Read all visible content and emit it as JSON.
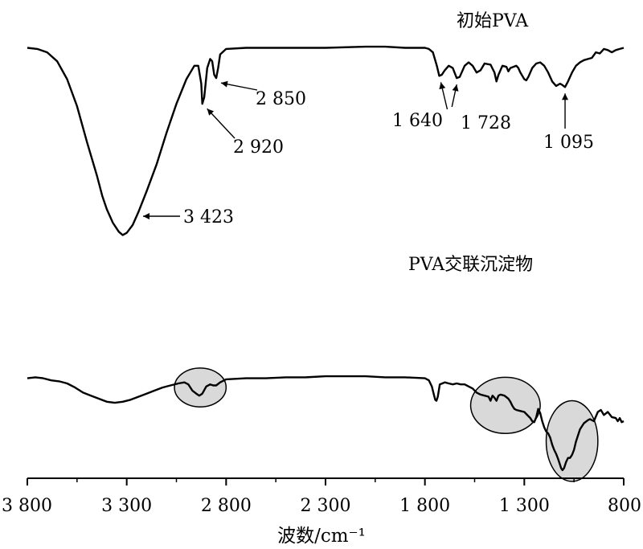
{
  "chart_data": {
    "type": "line",
    "xlabel": "波数/cm⁻¹",
    "x_reversed": true,
    "xlim": [
      3800,
      800
    ],
    "x_ticks": [
      {
        "value": 3800,
        "label": "3 800"
      },
      {
        "value": 3300,
        "label": "3 300"
      },
      {
        "value": 2800,
        "label": "2 800"
      },
      {
        "value": 2300,
        "label": "2 300"
      },
      {
        "value": 1800,
        "label": "1 800"
      },
      {
        "value": 1300,
        "label": "1 300"
      },
      {
        "value": 800,
        "label": "800"
      }
    ],
    "y_axis_shown": false,
    "ylim": [
      0,
      100
    ],
    "series": [
      {
        "name": "初始PVA",
        "color": "#000000",
        "points": [
          [
            3800,
            88
          ],
          [
            3750,
            87.5
          ],
          [
            3700,
            86
          ],
          [
            3650,
            82
          ],
          [
            3600,
            74
          ],
          [
            3550,
            62
          ],
          [
            3500,
            46
          ],
          [
            3450,
            31
          ],
          [
            3423,
            22
          ],
          [
            3400,
            16
          ],
          [
            3370,
            10
          ],
          [
            3340,
            6
          ],
          [
            3320,
            4.5
          ],
          [
            3300,
            5.5
          ],
          [
            3270,
            9
          ],
          [
            3240,
            15
          ],
          [
            3200,
            24
          ],
          [
            3150,
            36
          ],
          [
            3100,
            50
          ],
          [
            3050,
            63
          ],
          [
            3000,
            74
          ],
          [
            2960,
            80
          ],
          [
            2940,
            80
          ],
          [
            2925,
            72
          ],
          [
            2920,
            63
          ],
          [
            2910,
            66
          ],
          [
            2895,
            79
          ],
          [
            2880,
            83
          ],
          [
            2870,
            82
          ],
          [
            2860,
            76
          ],
          [
            2850,
            74.5
          ],
          [
            2840,
            79
          ],
          [
            2830,
            85
          ],
          [
            2800,
            87.5
          ],
          [
            2700,
            88
          ],
          [
            2500,
            88
          ],
          [
            2300,
            88
          ],
          [
            2100,
            88.5
          ],
          [
            2000,
            88.5
          ],
          [
            1900,
            88
          ],
          [
            1800,
            88
          ],
          [
            1780,
            87.5
          ],
          [
            1760,
            86
          ],
          [
            1740,
            80
          ],
          [
            1728,
            75.5
          ],
          [
            1715,
            76
          ],
          [
            1700,
            78
          ],
          [
            1680,
            80
          ],
          [
            1660,
            79
          ],
          [
            1640,
            74.5
          ],
          [
            1625,
            75
          ],
          [
            1600,
            80
          ],
          [
            1580,
            81.5
          ],
          [
            1560,
            80
          ],
          [
            1540,
            77
          ],
          [
            1520,
            78
          ],
          [
            1500,
            81
          ],
          [
            1470,
            80.5
          ],
          [
            1450,
            77
          ],
          [
            1440,
            73
          ],
          [
            1430,
            76
          ],
          [
            1410,
            80
          ],
          [
            1390,
            79.5
          ],
          [
            1380,
            77.5
          ],
          [
            1370,
            79
          ],
          [
            1340,
            80
          ],
          [
            1330,
            79
          ],
          [
            1320,
            77
          ],
          [
            1300,
            74
          ],
          [
            1290,
            73.5
          ],
          [
            1280,
            75
          ],
          [
            1260,
            79
          ],
          [
            1240,
            81
          ],
          [
            1220,
            81.5
          ],
          [
            1200,
            80
          ],
          [
            1180,
            77
          ],
          [
            1160,
            73
          ],
          [
            1140,
            71
          ],
          [
            1120,
            72
          ],
          [
            1110,
            71.5
          ],
          [
            1095,
            70.5
          ],
          [
            1080,
            73
          ],
          [
            1060,
            77
          ],
          [
            1040,
            80
          ],
          [
            1020,
            81.5
          ],
          [
            1000,
            82.5
          ],
          [
            980,
            83
          ],
          [
            960,
            83.5
          ],
          [
            940,
            86
          ],
          [
            920,
            85.5
          ],
          [
            900,
            87.5
          ],
          [
            880,
            87
          ],
          [
            860,
            86
          ],
          [
            840,
            87
          ],
          [
            820,
            87.5
          ],
          [
            800,
            88
          ]
        ]
      },
      {
        "name": "PVA交联沉淀物",
        "color": "#000000",
        "points": [
          [
            3800,
            47
          ],
          [
            3760,
            47.5
          ],
          [
            3720,
            47
          ],
          [
            3680,
            46
          ],
          [
            3640,
            45.5
          ],
          [
            3600,
            44.5
          ],
          [
            3560,
            42.5
          ],
          [
            3520,
            40
          ],
          [
            3480,
            38.5
          ],
          [
            3440,
            37
          ],
          [
            3400,
            35.5
          ],
          [
            3360,
            35
          ],
          [
            3320,
            35.5
          ],
          [
            3280,
            36.5
          ],
          [
            3240,
            38
          ],
          [
            3200,
            39.5
          ],
          [
            3160,
            41
          ],
          [
            3120,
            42.5
          ],
          [
            3080,
            43.5
          ],
          [
            3040,
            44.5
          ],
          [
            3010,
            45
          ],
          [
            2990,
            44
          ],
          [
            2970,
            41
          ],
          [
            2950,
            39.5
          ],
          [
            2935,
            38.5
          ],
          [
            2920,
            39.5
          ],
          [
            2900,
            43
          ],
          [
            2880,
            44
          ],
          [
            2865,
            43.5
          ],
          [
            2850,
            43.5
          ],
          [
            2830,
            45
          ],
          [
            2800,
            46.5
          ],
          [
            2700,
            47
          ],
          [
            2600,
            47
          ],
          [
            2500,
            47.5
          ],
          [
            2400,
            47.5
          ],
          [
            2300,
            48
          ],
          [
            2200,
            48
          ],
          [
            2100,
            48
          ],
          [
            2000,
            47.5
          ],
          [
            1900,
            47.5
          ],
          [
            1800,
            47
          ],
          [
            1780,
            46
          ],
          [
            1765,
            43
          ],
          [
            1755,
            39
          ],
          [
            1748,
            36.5
          ],
          [
            1742,
            36
          ],
          [
            1735,
            38
          ],
          [
            1725,
            44
          ],
          [
            1700,
            45
          ],
          [
            1680,
            44.5
          ],
          [
            1660,
            44
          ],
          [
            1640,
            44.5
          ],
          [
            1620,
            44
          ],
          [
            1600,
            44
          ],
          [
            1580,
            43
          ],
          [
            1560,
            42
          ],
          [
            1540,
            40
          ],
          [
            1520,
            39
          ],
          [
            1500,
            38.5
          ],
          [
            1480,
            38
          ],
          [
            1470,
            36
          ],
          [
            1460,
            38.5
          ],
          [
            1450,
            37.5
          ],
          [
            1440,
            36
          ],
          [
            1430,
            38.5
          ],
          [
            1420,
            39
          ],
          [
            1400,
            38.5
          ],
          [
            1380,
            37
          ],
          [
            1370,
            35.5
          ],
          [
            1360,
            33.5
          ],
          [
            1350,
            32
          ],
          [
            1340,
            31.5
          ],
          [
            1320,
            31
          ],
          [
            1300,
            30.5
          ],
          [
            1280,
            28.5
          ],
          [
            1270,
            27.5
          ],
          [
            1260,
            26
          ],
          [
            1250,
            25.5
          ],
          [
            1240,
            28
          ],
          [
            1230,
            32
          ],
          [
            1220,
            30
          ],
          [
            1210,
            26
          ],
          [
            1200,
            23
          ],
          [
            1190,
            21
          ],
          [
            1180,
            20
          ],
          [
            1170,
            18
          ],
          [
            1160,
            14.5
          ],
          [
            1150,
            12
          ],
          [
            1140,
            10
          ],
          [
            1130,
            7.5
          ],
          [
            1120,
            4.5
          ],
          [
            1115,
            3
          ],
          [
            1108,
            2
          ],
          [
            1100,
            3
          ],
          [
            1090,
            6
          ],
          [
            1080,
            8
          ],
          [
            1070,
            8
          ],
          [
            1060,
            9.5
          ],
          [
            1050,
            12
          ],
          [
            1040,
            16
          ],
          [
            1030,
            19
          ],
          [
            1020,
            22
          ],
          [
            1000,
            25
          ],
          [
            980,
            26.5
          ],
          [
            970,
            27
          ],
          [
            950,
            26
          ],
          [
            930,
            30.5
          ],
          [
            915,
            31.5
          ],
          [
            900,
            29
          ],
          [
            880,
            30.5
          ],
          [
            860,
            28
          ],
          [
            840,
            27.5
          ],
          [
            830,
            26
          ],
          [
            820,
            27.5
          ],
          [
            810,
            25.5
          ],
          [
            800,
            26
          ]
        ]
      }
    ],
    "annotations": [
      {
        "label": "3 423",
        "x": 3423
      },
      {
        "label": "2 920",
        "x": 2920
      },
      {
        "label": "2 850",
        "x": 2850
      },
      {
        "label": "1 640",
        "x": 1640
      },
      {
        "label": "1 728",
        "x": 1728
      },
      {
        "label": "1 095",
        "x": 1095
      }
    ],
    "highlights": [
      {
        "x_from": 3060,
        "x_to": 2800,
        "fill": "#d9d9d9"
      },
      {
        "x_from": 1570,
        "x_to": 1220,
        "fill": "#d9d9d9"
      },
      {
        "x_from": 1190,
        "x_to": 930,
        "fill": "#d9d9d9"
      }
    ]
  }
}
